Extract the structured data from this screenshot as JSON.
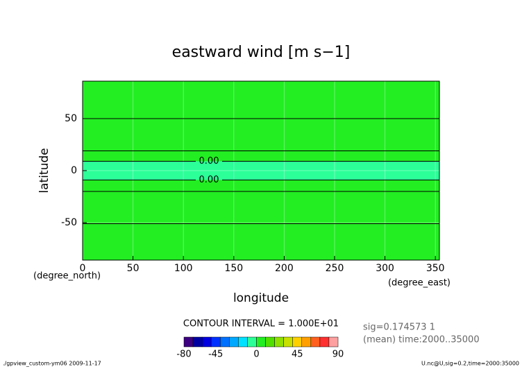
{
  "chart_data": {
    "type": "contour",
    "title": "eastward wind [m s−1]",
    "xlabel": "longitude",
    "ylabel": "latitude",
    "xunits": "(degree_east)",
    "yunits": "(degree_north)",
    "xlim": [
      0,
      354
    ],
    "ylim": [
      -86,
      86
    ],
    "xticks": [
      0,
      50,
      100,
      150,
      200,
      250,
      300,
      350
    ],
    "yticks": [
      -50,
      0,
      50
    ],
    "grid": true,
    "fill": "#22ee22",
    "bands": [
      {
        "from": -9,
        "to": 9,
        "color": "#2cff98"
      }
    ],
    "contours": [
      {
        "lat": 50
      },
      {
        "lat": 19
      },
      {
        "lat": 9,
        "label": "0.00"
      },
      {
        "lat": -9,
        "label": "0.00"
      },
      {
        "lat": -20
      },
      {
        "lat": -51
      }
    ],
    "contour_interval": "CONTOUR INTERVAL = 1.000E+01",
    "colorbar": {
      "levels": [
        -80,
        -70,
        -60,
        -50,
        -40,
        -30,
        -20,
        -10,
        0,
        10,
        20,
        30,
        40,
        50,
        60,
        70,
        80,
        90
      ],
      "colors": [
        "#3c0080",
        "#0000a0",
        "#0000e0",
        "#0030ff",
        "#0070ff",
        "#00a8ff",
        "#00e0ff",
        "#2cff98",
        "#22ee22",
        "#50e000",
        "#90e000",
        "#c8e000",
        "#ffd000",
        "#ffa000",
        "#ff6020",
        "#ff3030",
        "#ffa0a0"
      ],
      "ticks": [
        -80,
        -45,
        0,
        45,
        90
      ]
    },
    "info": [
      "sig=0.174573 1",
      "(mean) time:2000..35000"
    ],
    "footer_left": "./gpview_custom-ym06  2009-11-17",
    "footer_right": "U.nc@U,sig=0.2,time=2000:35000"
  }
}
